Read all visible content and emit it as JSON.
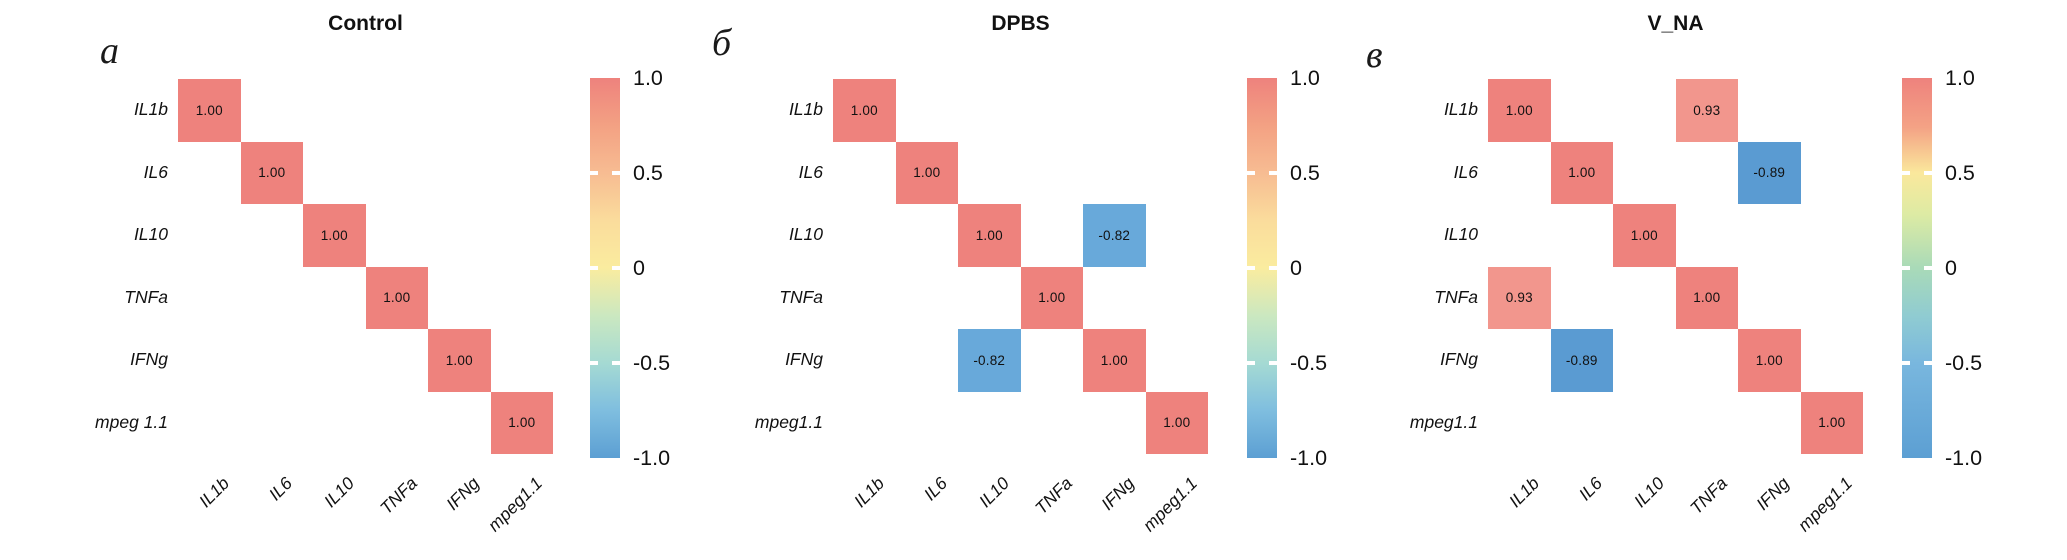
{
  "page": {
    "background": "#ffffff"
  },
  "chart_data": [
    {
      "type": "heatmap",
      "panel_letter": "а",
      "title": "Control",
      "x_labels": [
        "IL1b",
        "IL6",
        "IL10",
        "TNFa",
        "IFNg",
        "mpeg1.1"
      ],
      "y_labels": [
        "IL1b",
        "IL6",
        "IL10",
        "TNFa",
        "IFNg",
        "mpeg 1.1"
      ],
      "value_range": [
        -1.0,
        1.0
      ],
      "cells": [
        {
          "row": 0,
          "col": 0,
          "value": "1.00",
          "color": "#EE827D"
        },
        {
          "row": 1,
          "col": 1,
          "value": "1.00",
          "color": "#EE827D"
        },
        {
          "row": 2,
          "col": 2,
          "value": "1.00",
          "color": "#EE827D"
        },
        {
          "row": 3,
          "col": 3,
          "value": "1.00",
          "color": "#EE827D"
        },
        {
          "row": 4,
          "col": 4,
          "value": "1.00",
          "color": "#EE827D"
        },
        {
          "row": 5,
          "col": 5,
          "value": "1.00",
          "color": "#EE827D"
        }
      ],
      "colorbar": {
        "tick_labels": [
          "1.0",
          "0.5",
          "0",
          "-0.5",
          "-1.0"
        ],
        "tick_values": [
          1.0,
          0.5,
          0,
          -0.5,
          -1.0
        ],
        "gradient": [
          {
            "pos": 0,
            "color": "#EE827D"
          },
          {
            "pos": 12.5,
            "color": "#F3A183"
          },
          {
            "pos": 25,
            "color": "#F7BC92"
          },
          {
            "pos": 37.5,
            "color": "#FADC9C"
          },
          {
            "pos": 50,
            "color": "#FAEC9F"
          },
          {
            "pos": 62.5,
            "color": "#CBE8C0"
          },
          {
            "pos": 75,
            "color": "#A5DAD3"
          },
          {
            "pos": 87.5,
            "color": "#7FBEDF"
          },
          {
            "pos": 100,
            "color": "#5C9FD3"
          }
        ]
      }
    },
    {
      "type": "heatmap",
      "panel_letter": "б",
      "title": "DPBS",
      "x_labels": [
        "IL1b",
        "IL6",
        "IL10",
        "TNFa",
        "IFNg",
        "mpeg1.1"
      ],
      "y_labels": [
        "IL1b",
        "IL6",
        "IL10",
        "TNFa",
        "IFNg",
        "mpeg1.1"
      ],
      "value_range": [
        -1.0,
        1.0
      ],
      "cells": [
        {
          "row": 0,
          "col": 0,
          "value": "1.00",
          "color": "#EE827D"
        },
        {
          "row": 1,
          "col": 1,
          "value": "1.00",
          "color": "#EE827D"
        },
        {
          "row": 2,
          "col": 2,
          "value": "1.00",
          "color": "#EE827D"
        },
        {
          "row": 2,
          "col": 4,
          "value": "-0.82",
          "color": "#68A9DA"
        },
        {
          "row": 3,
          "col": 3,
          "value": "1.00",
          "color": "#EE827D"
        },
        {
          "row": 4,
          "col": 2,
          "value": "-0.82",
          "color": "#68A9DA"
        },
        {
          "row": 4,
          "col": 4,
          "value": "1.00",
          "color": "#EE827D"
        },
        {
          "row": 5,
          "col": 5,
          "value": "1.00",
          "color": "#EE827D"
        }
      ],
      "colorbar": {
        "tick_labels": [
          "1.0",
          "0.5",
          "0",
          "-0.5",
          "-1.0"
        ],
        "tick_values": [
          1.0,
          0.5,
          0,
          -0.5,
          -1.0
        ],
        "gradient": [
          {
            "pos": 0,
            "color": "#EE827D"
          },
          {
            "pos": 12.5,
            "color": "#F3A183"
          },
          {
            "pos": 25,
            "color": "#F7BC92"
          },
          {
            "pos": 37.5,
            "color": "#FADC9C"
          },
          {
            "pos": 50,
            "color": "#FAEC9F"
          },
          {
            "pos": 62.5,
            "color": "#CBE8C0"
          },
          {
            "pos": 75,
            "color": "#A5DAD3"
          },
          {
            "pos": 87.5,
            "color": "#7FBEDF"
          },
          {
            "pos": 100,
            "color": "#5C9FD3"
          }
        ]
      }
    },
    {
      "type": "heatmap",
      "panel_letter": "в",
      "title": "V_NA",
      "x_labels": [
        "IL1b",
        "IL6",
        "IL10",
        "TNFa",
        "IFNg",
        "mpeg1.1"
      ],
      "y_labels": [
        "IL1b",
        "IL6",
        "IL10",
        "TNFa",
        "IFNg",
        "mpeg1.1"
      ],
      "value_range": [
        -1.0,
        1.0
      ],
      "cells": [
        {
          "row": 0,
          "col": 0,
          "value": "1.00",
          "color": "#EE827D"
        },
        {
          "row": 0,
          "col": 3,
          "value": "0.93",
          "color": "#F2968D"
        },
        {
          "row": 1,
          "col": 1,
          "value": "1.00",
          "color": "#EE827D"
        },
        {
          "row": 1,
          "col": 4,
          "value": "-0.89",
          "color": "#5A9BD2"
        },
        {
          "row": 2,
          "col": 2,
          "value": "1.00",
          "color": "#EE827D"
        },
        {
          "row": 3,
          "col": 0,
          "value": "0.93",
          "color": "#F2968D"
        },
        {
          "row": 3,
          "col": 3,
          "value": "1.00",
          "color": "#EE827D"
        },
        {
          "row": 4,
          "col": 1,
          "value": "-0.89",
          "color": "#5A9BD2"
        },
        {
          "row": 4,
          "col": 4,
          "value": "1.00",
          "color": "#EE827D"
        },
        {
          "row": 5,
          "col": 5,
          "value": "1.00",
          "color": "#EE827D"
        }
      ],
      "colorbar": {
        "tick_labels": [
          "1.0",
          "0.5",
          "0",
          "-0.5",
          "-1.0"
        ],
        "tick_values": [
          1.0,
          0.5,
          0,
          -0.5,
          -1.0
        ],
        "gradient": [
          {
            "pos": 0,
            "color": "#EE827D"
          },
          {
            "pos": 13,
            "color": "#F4A285"
          },
          {
            "pos": 25,
            "color": "#FAE89C"
          },
          {
            "pos": 36,
            "color": "#DDEBA4"
          },
          {
            "pos": 50,
            "color": "#A9DAB8"
          },
          {
            "pos": 63,
            "color": "#8FCBD2"
          },
          {
            "pos": 75,
            "color": "#79B7DE"
          },
          {
            "pos": 100,
            "color": "#5C9FD3"
          }
        ]
      }
    }
  ]
}
